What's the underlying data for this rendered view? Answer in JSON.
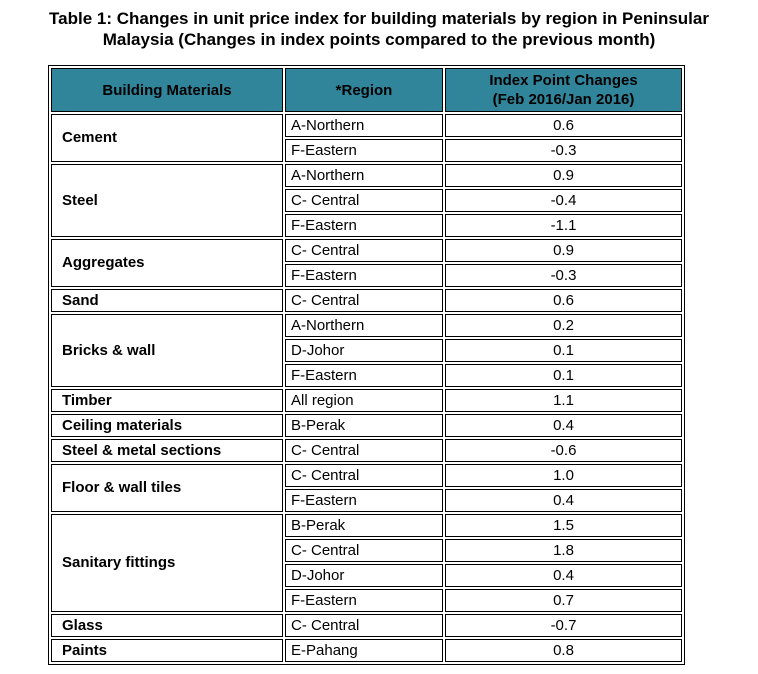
{
  "title": {
    "lines": [
      "Table 1: Changes in unit price index for building materials by region in Peninsular",
      "Malaysia (Changes in index points compared to the previous month)"
    ]
  },
  "table": {
    "header_bg_color": "#31859B",
    "border_color": "#000000",
    "columns": [
      {
        "label": "Building Materials"
      },
      {
        "label": "*Region"
      },
      {
        "label": "Index Point Changes\n(Feb 2016/Jan 2016)"
      }
    ],
    "groups": [
      {
        "material": "Cement",
        "rows": [
          {
            "region": "A-Northern",
            "value": "0.6"
          },
          {
            "region": "F-Eastern",
            "value": "-0.3"
          }
        ]
      },
      {
        "material": "Steel",
        "rows": [
          {
            "region": "A-Northern",
            "value": "0.9"
          },
          {
            "region": "C- Central",
            "value": "-0.4"
          },
          {
            "region": "F-Eastern",
            "value": "-1.1"
          }
        ]
      },
      {
        "material": "Aggregates",
        "rows": [
          {
            "region": "C- Central",
            "value": "0.9"
          },
          {
            "region": "F-Eastern",
            "value": "-0.3"
          }
        ]
      },
      {
        "material": "Sand",
        "rows": [
          {
            "region": "C- Central",
            "value": "0.6"
          }
        ]
      },
      {
        "material": "Bricks & wall",
        "rows": [
          {
            "region": "A-Northern",
            "value": "0.2"
          },
          {
            "region": "D-Johor",
            "value": "0.1"
          },
          {
            "region": "F-Eastern",
            "value": "0.1"
          }
        ]
      },
      {
        "material": "Timber",
        "rows": [
          {
            "region": "All region",
            "value": "1.1"
          }
        ]
      },
      {
        "material": "Ceiling materials",
        "rows": [
          {
            "region": "B-Perak",
            "value": "0.4"
          }
        ]
      },
      {
        "material": "Steel & metal sections",
        "rows": [
          {
            "region": "C- Central",
            "value": "-0.6"
          }
        ]
      },
      {
        "material": "Floor & wall tiles",
        "rows": [
          {
            "region": "C- Central",
            "value": "1.0"
          },
          {
            "region": "F-Eastern",
            "value": "0.4"
          }
        ]
      },
      {
        "material": "Sanitary fittings",
        "rows": [
          {
            "region": "B-Perak",
            "value": "1.5"
          },
          {
            "region": "C- Central",
            "value": "1.8"
          },
          {
            "region": "D-Johor",
            "value": "0.4"
          },
          {
            "region": "F-Eastern",
            "value": "0.7"
          }
        ]
      },
      {
        "material": "Glass",
        "rows": [
          {
            "region": "C- Central",
            "value": "-0.7"
          }
        ]
      },
      {
        "material": "Paints",
        "rows": [
          {
            "region": "E-Pahang",
            "value": "0.8"
          }
        ]
      }
    ]
  }
}
